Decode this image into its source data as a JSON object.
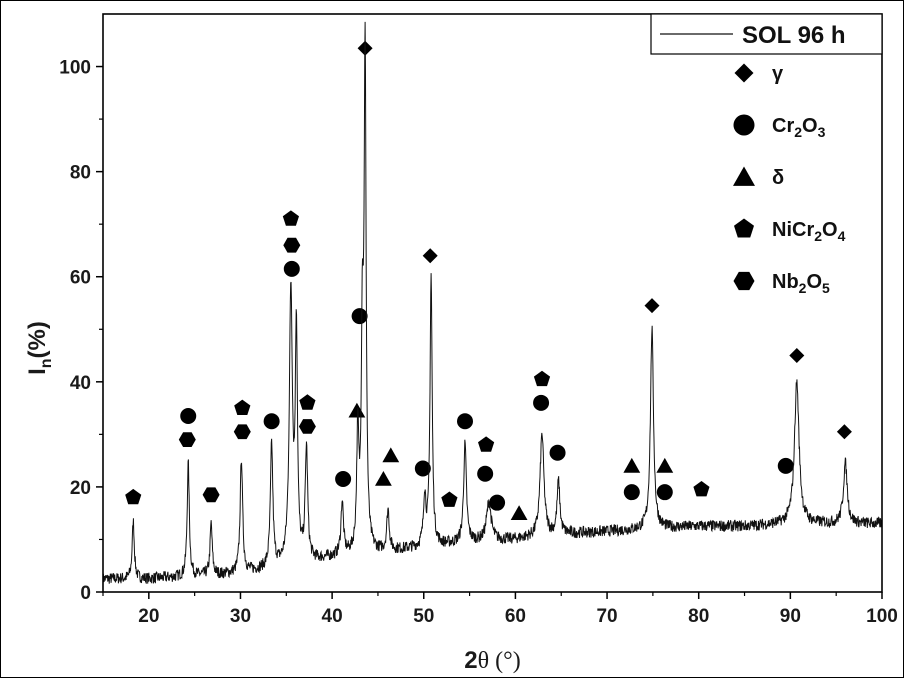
{
  "chart_data": {
    "type": "line",
    "xlabel_main": "2",
    "xlabel_symbol": "θ (°)",
    "ylabel_main": "I",
    "ylabel_sub": "n",
    "ylabel_unit": "(%)",
    "xlim": [
      15,
      100
    ],
    "ylim": [
      0,
      110
    ],
    "x_ticks": [
      20,
      30,
      40,
      50,
      60,
      70,
      80,
      90,
      100
    ],
    "y_ticks": [
      0,
      20,
      40,
      60,
      80,
      100
    ],
    "grid": false,
    "legend_position": "top-right",
    "series": [
      {
        "name": "SOL 96 h",
        "baseline": [
          [
            15,
            2.5
          ],
          [
            20,
            2.5
          ],
          [
            30,
            3.5
          ],
          [
            35,
            5
          ],
          [
            40,
            6.5
          ],
          [
            45,
            7.5
          ],
          [
            50,
            8.5
          ],
          [
            55,
            9.5
          ],
          [
            60,
            10
          ],
          [
            65,
            11
          ],
          [
            70,
            11.5
          ],
          [
            75,
            12
          ],
          [
            80,
            12.5
          ],
          [
            85,
            12.5
          ],
          [
            90,
            13
          ],
          [
            95,
            13
          ],
          [
            100,
            13
          ]
        ],
        "peaks": [
          {
            "x": 18.3,
            "y": 13.5,
            "w": 0.14
          },
          {
            "x": 24.3,
            "y": 24.5,
            "w": 0.14
          },
          {
            "x": 26.8,
            "y": 13,
            "w": 0.14
          },
          {
            "x": 30.1,
            "y": 25.5,
            "w": 0.16
          },
          {
            "x": 33.4,
            "y": 28,
            "w": 0.16
          },
          {
            "x": 35.5,
            "y": 57,
            "w": 0.2
          },
          {
            "x": 36.1,
            "y": 49,
            "w": 0.14
          },
          {
            "x": 37.2,
            "y": 27,
            "w": 0.16
          },
          {
            "x": 41.1,
            "y": 17,
            "w": 0.16
          },
          {
            "x": 42.8,
            "y": 29,
            "w": 0.14
          },
          {
            "x": 43.3,
            "y": 47,
            "w": 0.14
          },
          {
            "x": 43.6,
            "y": 100,
            "w": 0.13
          },
          {
            "x": 46.1,
            "y": 15.5,
            "w": 0.16
          },
          {
            "x": 50.1,
            "y": 18,
            "w": 0.16
          },
          {
            "x": 50.8,
            "y": 60,
            "w": 0.14
          },
          {
            "x": 54.5,
            "y": 28,
            "w": 0.18
          },
          {
            "x": 57.1,
            "y": 17,
            "w": 0.3
          },
          {
            "x": 62.9,
            "y": 30,
            "w": 0.25
          },
          {
            "x": 64.7,
            "y": 21,
            "w": 0.18
          },
          {
            "x": 74.9,
            "y": 50,
            "w": 0.2
          },
          {
            "x": 90.7,
            "y": 40,
            "w": 0.3
          },
          {
            "x": 96.0,
            "y": 24.5,
            "w": 0.25
          }
        ]
      }
    ],
    "legend": {
      "title": "SOL 96 h",
      "entries": [
        {
          "symbol": "diamond",
          "label": "γ",
          "parts": []
        },
        {
          "symbol": "circle",
          "label": "Cr2O3",
          "parts": [
            [
              "Cr",
              ""
            ],
            [
              "2",
              "sub"
            ],
            [
              "O",
              ""
            ],
            [
              "3",
              "sub"
            ]
          ]
        },
        {
          "symbol": "triangle",
          "label": "δ",
          "parts": []
        },
        {
          "symbol": "pentagon",
          "label": "NiCr2O4",
          "parts": [
            [
              "NiCr",
              ""
            ],
            [
              "2",
              "sub"
            ],
            [
              "O",
              ""
            ],
            [
              "4",
              "sub"
            ]
          ]
        },
        {
          "symbol": "hexagon",
          "label": "Nb2O5",
          "parts": [
            [
              "Nb",
              ""
            ],
            [
              "2",
              "sub"
            ],
            [
              "O",
              ""
            ],
            [
              "5",
              "sub"
            ]
          ]
        }
      ]
    },
    "phase_markers": [
      {
        "phase": "diamond",
        "x": 43.6,
        "y": 103.5
      },
      {
        "phase": "diamond",
        "x": 50.7,
        "y": 64
      },
      {
        "phase": "diamond",
        "x": 74.9,
        "y": 54.5
      },
      {
        "phase": "diamond",
        "x": 90.7,
        "y": 45
      },
      {
        "phase": "diamond",
        "x": 95.9,
        "y": 30.5
      },
      {
        "phase": "circle",
        "x": 24.3,
        "y": 33.5
      },
      {
        "phase": "circle",
        "x": 33.4,
        "y": 32.5
      },
      {
        "phase": "circle",
        "x": 35.6,
        "y": 61.5
      },
      {
        "phase": "circle",
        "x": 41.2,
        "y": 21.5
      },
      {
        "phase": "circle",
        "x": 43.0,
        "y": 52.5
      },
      {
        "phase": "circle",
        "x": 49.9,
        "y": 23.5
      },
      {
        "phase": "circle",
        "x": 54.5,
        "y": 32.5
      },
      {
        "phase": "circle",
        "x": 56.7,
        "y": 22.5
      },
      {
        "phase": "circle",
        "x": 58.0,
        "y": 17
      },
      {
        "phase": "circle",
        "x": 62.8,
        "y": 36
      },
      {
        "phase": "circle",
        "x": 64.6,
        "y": 26.5
      },
      {
        "phase": "circle",
        "x": 72.7,
        "y": 19
      },
      {
        "phase": "circle",
        "x": 76.3,
        "y": 19
      },
      {
        "phase": "circle",
        "x": 89.5,
        "y": 24
      },
      {
        "phase": "triangle",
        "x": 42.7,
        "y": 34.5
      },
      {
        "phase": "triangle",
        "x": 45.6,
        "y": 21.5
      },
      {
        "phase": "triangle",
        "x": 46.4,
        "y": 26
      },
      {
        "phase": "triangle",
        "x": 60.4,
        "y": 15
      },
      {
        "phase": "triangle",
        "x": 72.7,
        "y": 24
      },
      {
        "phase": "triangle",
        "x": 76.3,
        "y": 24
      },
      {
        "phase": "pentagon",
        "x": 18.3,
        "y": 18
      },
      {
        "phase": "pentagon",
        "x": 30.2,
        "y": 35
      },
      {
        "phase": "pentagon",
        "x": 35.5,
        "y": 71
      },
      {
        "phase": "pentagon",
        "x": 37.3,
        "y": 36
      },
      {
        "phase": "pentagon",
        "x": 52.8,
        "y": 17.5
      },
      {
        "phase": "pentagon",
        "x": 56.8,
        "y": 28
      },
      {
        "phase": "pentagon",
        "x": 62.9,
        "y": 40.5
      },
      {
        "phase": "pentagon",
        "x": 80.3,
        "y": 19.5
      },
      {
        "phase": "hexagon",
        "x": 24.2,
        "y": 29
      },
      {
        "phase": "hexagon",
        "x": 26.8,
        "y": 18.5
      },
      {
        "phase": "hexagon",
        "x": 30.2,
        "y": 30.5
      },
      {
        "phase": "hexagon",
        "x": 35.6,
        "y": 66
      },
      {
        "phase": "hexagon",
        "x": 37.3,
        "y": 31.5
      }
    ]
  }
}
